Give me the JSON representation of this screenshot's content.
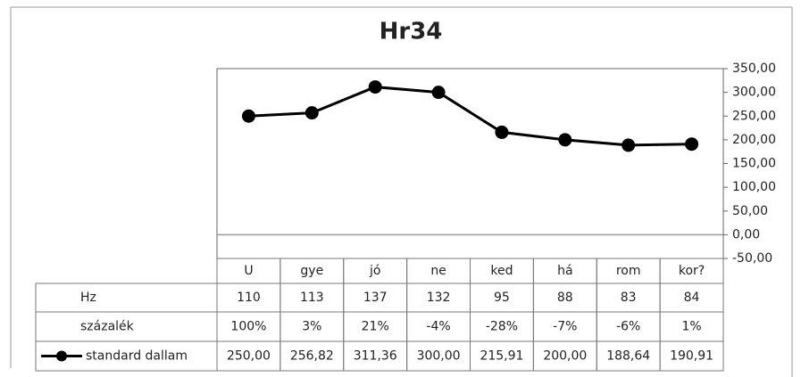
{
  "chart_data": {
    "type": "line",
    "title": "Hr34",
    "categories": [
      "U",
      "gye",
      "jó",
      "ne",
      "ked",
      "há",
      "rom",
      "kor?"
    ],
    "series": [
      {
        "name": "Hz",
        "values": [
          110,
          113,
          137,
          132,
          95,
          88,
          83,
          84
        ]
      },
      {
        "name": "százalék",
        "values": [
          100,
          3,
          21,
          -4,
          -28,
          -7,
          -6,
          1
        ],
        "value_labels": [
          "100%",
          "3%",
          "21%",
          "-4%",
          "-28%",
          "-7%",
          "-6%",
          "1%"
        ]
      },
      {
        "name": "standard dallam",
        "color": "#000000",
        "values": [
          250,
          256.82,
          311.36,
          300,
          215.91,
          200,
          188.64,
          190.91
        ],
        "value_labels": [
          "250,00",
          "256,82",
          "311,36",
          "300,00",
          "215,91",
          "200,00",
          "188,64",
          "190,91"
        ]
      }
    ],
    "ylim": [
      -50,
      350
    ],
    "yticks": [
      {
        "value": -50,
        "label": "-50,00"
      },
      {
        "value": 0,
        "label": "0,00"
      },
      {
        "value": 50,
        "label": "50,00"
      },
      {
        "value": 100,
        "label": "100,00"
      },
      {
        "value": 150,
        "label": "150,00"
      },
      {
        "value": 200,
        "label": "200,00"
      },
      {
        "value": 250,
        "label": "250,00"
      },
      {
        "value": 300,
        "label": "300,00"
      },
      {
        "value": 350,
        "label": "350,00"
      }
    ],
    "grid": false
  }
}
